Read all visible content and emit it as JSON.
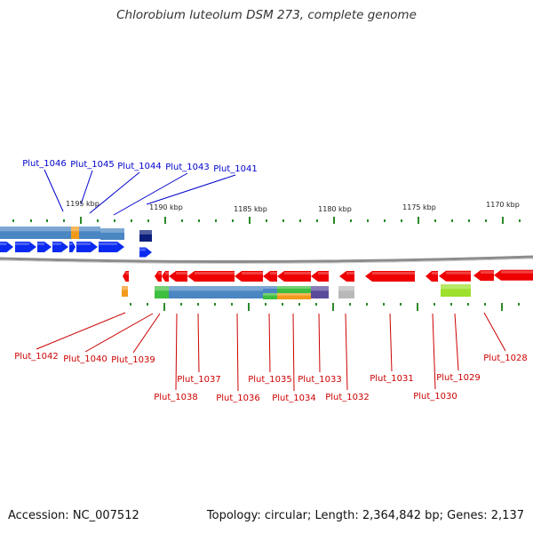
{
  "title": "Chlorobium luteolum DSM 273, complete genome",
  "footer": {
    "accession": "Accession: NC_007512",
    "topology": "Topology: circular; Length: 2,364,842 bp; Genes: 2,137"
  },
  "colors": {
    "forward_label": "#0000cc",
    "reverse_label": "#cc0000",
    "forward_gene": "#0a2af0",
    "reverse_gene": "#ee0000",
    "cog_blue": "#4a86c2",
    "cog_orange": "#f39a1c",
    "cog_green": "#3fbf3f",
    "cog_purple": "#5a4a9a",
    "cog_grey": "#b8b8b8",
    "cog_lime": "#9ee02c",
    "cog_navy": "#0a1e7a",
    "tick": "#2a8a2a",
    "backbone": "#888888"
  },
  "ruler": [
    "1195 kbp",
    "1190 kbp",
    "1185 kbp",
    "1180 kbp",
    "1175 kbp",
    "1170 kbp"
  ],
  "forward_labels": [
    "Plut_1046",
    "Plut_1045",
    "Plut_1044",
    "Plut_1043",
    "Plut_1041"
  ],
  "reverse_labels": [
    "Plut_1042",
    "Plut_1040",
    "Plut_1039",
    "Plut_1037",
    "Plut_1038",
    "Plut_1036",
    "Plut_1035",
    "Plut_1034",
    "Plut_1033",
    "Plut_1032",
    "Plut_1031",
    "Plut_1030",
    "Plut_1029",
    "Plut_1028"
  ]
}
